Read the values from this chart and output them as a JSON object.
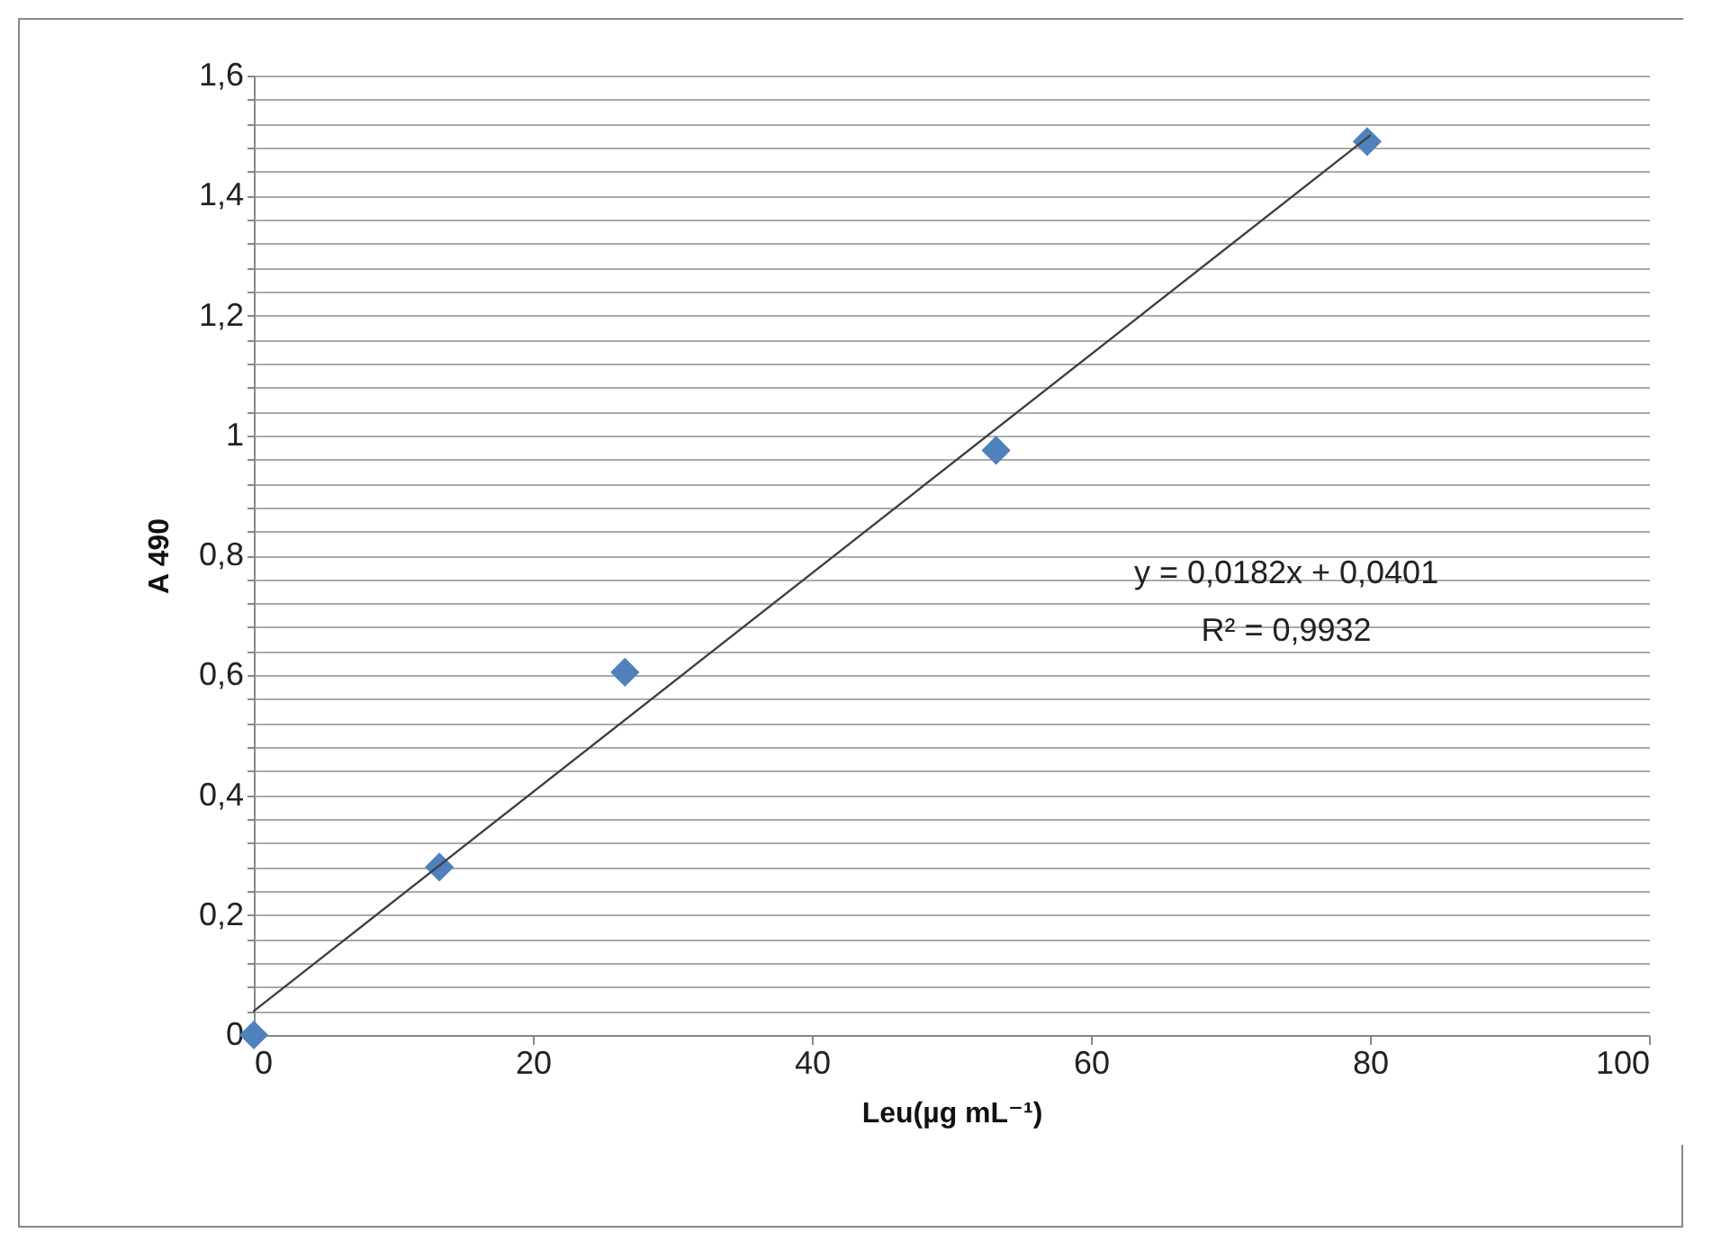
{
  "chart_data": {
    "type": "scatter",
    "xlabel": "Leu(µg mL⁻¹)",
    "ylabel": "A 490",
    "annotations": [
      "y = 0,0182x + 0,0401",
      "R² = 0,9932"
    ],
    "series": [
      {
        "color": "#4f81bd",
        "marker": "diamond",
        "x": [
          0,
          13.3,
          26.6,
          53.2,
          79.8
        ],
        "values": [
          0,
          0.28,
          0.605,
          0.975,
          1.49
        ]
      },
      {
        "type": "line",
        "color": "#404040",
        "marker": "none",
        "x": [
          0,
          80
        ],
        "values": [
          0.04,
          1.5
        ]
      }
    ],
    "xlim": [
      0,
      100
    ],
    "xticks": [
      0,
      20,
      40,
      60,
      80,
      100
    ],
    "ylim": [
      0,
      1.6
    ],
    "yticks": [
      0,
      {
        "value": 0.04,
        "label": null
      },
      {
        "value": 0.08,
        "label": null
      },
      {
        "value": 0.12,
        "label": null
      },
      {
        "value": 0.16,
        "label": null
      },
      {
        "value": 0.2,
        "label": "0,2"
      },
      {
        "value": 0.24,
        "label": null
      },
      {
        "value": 0.28,
        "label": null
      },
      {
        "value": 0.32,
        "label": null
      },
      {
        "value": 0.36,
        "label": null
      },
      {
        "value": 0.4,
        "label": "0,4"
      },
      {
        "value": 0.44,
        "label": null
      },
      {
        "value": 0.48,
        "label": null
      },
      {
        "value": 0.52,
        "label": null
      },
      {
        "value": 0.56,
        "label": null
      },
      {
        "value": 0.6,
        "label": "0,6"
      },
      {
        "value": 0.64,
        "label": null
      },
      {
        "value": 0.68,
        "label": null
      },
      {
        "value": 0.72,
        "label": null
      },
      {
        "value": 0.76,
        "label": null
      },
      {
        "value": 0.8,
        "label": "0,8"
      },
      {
        "value": 0.84,
        "label": null
      },
      {
        "value": 0.88,
        "label": null
      },
      {
        "value": 0.92,
        "label": null
      },
      {
        "value": 0.96,
        "label": null
      },
      1,
      {
        "value": 1.04,
        "label": null
      },
      {
        "value": 1.08,
        "label": null
      },
      {
        "value": 1.12,
        "label": null
      },
      {
        "value": 1.16,
        "label": null
      },
      {
        "value": 1.2,
        "label": "1,2"
      },
      {
        "value": 1.24,
        "label": null
      },
      {
        "value": 1.28,
        "label": null
      },
      {
        "value": 1.32,
        "label": null
      },
      {
        "value": 1.36,
        "label": null
      },
      {
        "value": 1.4,
        "label": "1,4"
      },
      {
        "value": 1.44,
        "label": null
      },
      {
        "value": 1.48,
        "label": null
      },
      {
        "value": 1.52,
        "label": null
      },
      {
        "value": 1.56,
        "label": null
      },
      {
        "value": 1.6,
        "label": "1,6"
      }
    ],
    "grid": "y"
  }
}
